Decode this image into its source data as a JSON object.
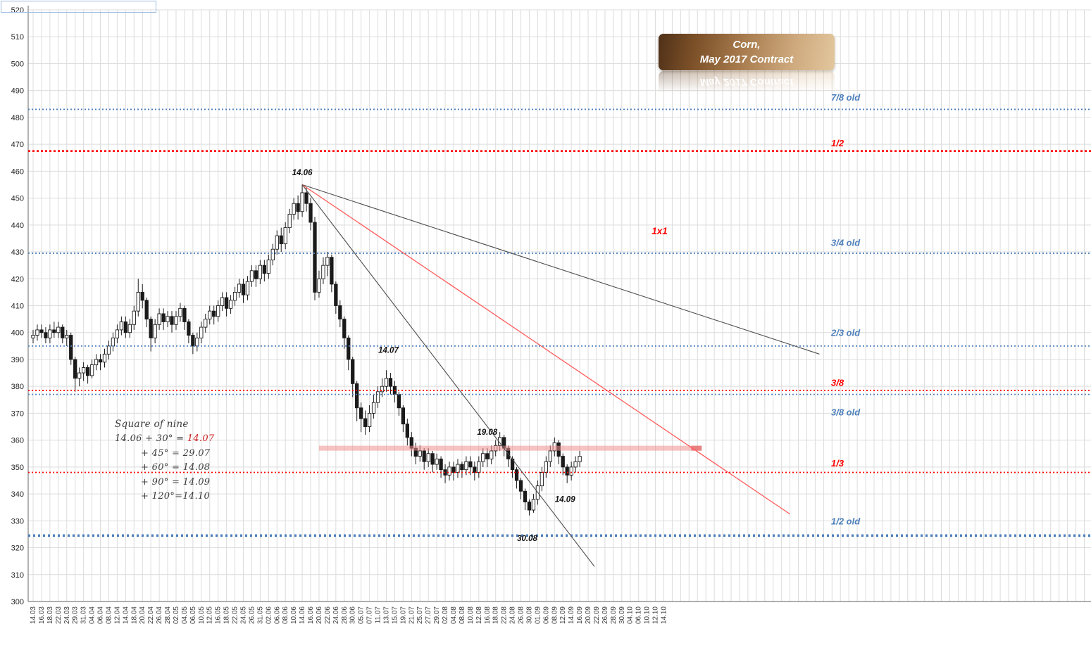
{
  "title_box": {
    "line1": "Corn,",
    "line2": "May 2017 Contract"
  },
  "square_of_nine": {
    "heading": "Square of nine",
    "line1_prefix": "14.06 + 30° = ",
    "line1_highlight": "14.07",
    "lines": [
      "+ 45° = 29.07",
      "+ 60° = 14.08",
      "+ 90° = 14.09",
      "+ 120°=14.10"
    ]
  },
  "colors": {
    "grid": "#dcdcdc",
    "candle": "#1a1a1a",
    "ref_blue": "#4f81bd",
    "ref_red": "#ff0000",
    "gann_black": "#4d4d4d",
    "gann_red": "#ff5a5a",
    "band": "#f08f8f",
    "band_cap": "#e05555"
  },
  "chart_data": {
    "type": "candlestick",
    "title": "Corn, May 2017 Contract",
    "y_axis": {
      "min": 300,
      "max": 520,
      "step": 10
    },
    "x_labels": [
      "14.03",
      "16.03",
      "18.03",
      "22.03",
      "24.03",
      "29.03",
      "31.03",
      "04.04",
      "06.04",
      "08.04",
      "12.04",
      "14.04",
      "18.04",
      "20.04",
      "22.04",
      "26.04",
      "28.04",
      "02.05",
      "04.05",
      "06.05",
      "10.05",
      "12.05",
      "16.05",
      "18.05",
      "22.05",
      "24.05",
      "26.05",
      "31.05",
      "02.06",
      "06.06",
      "08.06",
      "10.06",
      "14.06",
      "16.06",
      "20.06",
      "22.06",
      "24.06",
      "28.06",
      "30.06",
      "05.07",
      "07.07",
      "11.07",
      "13.07",
      "15.07",
      "19.07",
      "21.07",
      "25.07",
      "27.07",
      "29.07",
      "02.08",
      "04.08",
      "08.08",
      "10.08",
      "12.08",
      "16.08",
      "18.08",
      "22.08",
      "24.08",
      "26.08",
      "30.08",
      "01.09",
      "06.09",
      "08.09",
      "12.09",
      "14.09",
      "16.09",
      "20.09",
      "22.09",
      "26.09",
      "28.09",
      "30.09",
      "04.10",
      "06.10",
      "10.10",
      "12.10",
      "14.10"
    ],
    "candle_format": [
      "date",
      "open",
      "high",
      "low",
      "close"
    ],
    "candles": [
      [
        "14.03",
        398,
        401,
        396,
        399
      ],
      [
        "15.03",
        399,
        403,
        397,
        401
      ],
      [
        "16.03",
        401,
        403,
        398,
        400
      ],
      [
        "17.03",
        400,
        402,
        396,
        398
      ],
      [
        "18.03",
        398,
        403,
        396,
        401
      ],
      [
        "21.03",
        401,
        404,
        398,
        400
      ],
      [
        "22.03",
        400,
        404,
        398,
        402
      ],
      [
        "23.03",
        402,
        403,
        396,
        398
      ],
      [
        "24.03",
        398,
        401,
        395,
        399
      ],
      [
        "28.03",
        399,
        400,
        388,
        390
      ],
      [
        "29.03",
        390,
        391,
        378,
        383
      ],
      [
        "30.03",
        383,
        387,
        380,
        385
      ],
      [
        "31.03",
        385,
        389,
        382,
        387
      ],
      [
        "01.04",
        387,
        388,
        381,
        384
      ],
      [
        "04.04",
        384,
        390,
        383,
        388
      ],
      [
        "05.04",
        388,
        392,
        386,
        390
      ],
      [
        "06.04",
        390,
        392,
        386,
        389
      ],
      [
        "07.04",
        389,
        394,
        387,
        392
      ],
      [
        "08.04",
        392,
        397,
        390,
        395
      ],
      [
        "11.04",
        395,
        400,
        393,
        398
      ],
      [
        "12.04",
        398,
        403,
        396,
        401
      ],
      [
        "13.04",
        401,
        406,
        399,
        404
      ],
      [
        "14.04",
        404,
        406,
        398,
        400
      ],
      [
        "15.04",
        400,
        405,
        398,
        403
      ],
      [
        "18.04",
        403,
        410,
        401,
        408
      ],
      [
        "19.04",
        408,
        420,
        406,
        415
      ],
      [
        "20.04",
        415,
        418,
        409,
        412
      ],
      [
        "21.04",
        412,
        413,
        402,
        405
      ],
      [
        "22.04",
        405,
        406,
        393,
        398
      ],
      [
        "25.04",
        398,
        405,
        396,
        403
      ],
      [
        "26.04",
        403,
        409,
        401,
        407
      ],
      [
        "27.04",
        407,
        409,
        401,
        404
      ],
      [
        "28.04",
        404,
        408,
        402,
        406
      ],
      [
        "29.04",
        406,
        408,
        400,
        403
      ],
      [
        "02.05",
        403,
        408,
        401,
        406
      ],
      [
        "03.05",
        406,
        411,
        404,
        409
      ],
      [
        "04.05",
        409,
        410,
        401,
        404
      ],
      [
        "05.05",
        404,
        405,
        396,
        399
      ],
      [
        "06.05",
        399,
        400,
        392,
        395
      ],
      [
        "09.05",
        395,
        400,
        393,
        398
      ],
      [
        "10.05",
        398,
        404,
        396,
        402
      ],
      [
        "11.05",
        402,
        407,
        400,
        405
      ],
      [
        "12.05",
        405,
        410,
        403,
        408
      ],
      [
        "13.05",
        408,
        410,
        403,
        406
      ],
      [
        "16.05",
        406,
        412,
        404,
        410
      ],
      [
        "17.05",
        410,
        415,
        408,
        413
      ],
      [
        "18.05",
        413,
        415,
        406,
        409
      ],
      [
        "19.05",
        409,
        414,
        407,
        412
      ],
      [
        "22.05",
        412,
        417,
        410,
        415
      ],
      [
        "23.05",
        415,
        420,
        413,
        418
      ],
      [
        "24.05",
        418,
        420,
        411,
        414
      ],
      [
        "25.05",
        414,
        421,
        412,
        419
      ],
      [
        "26.05",
        419,
        425,
        417,
        423
      ],
      [
        "27.05",
        423,
        425,
        417,
        420
      ],
      [
        "31.05",
        420,
        427,
        418,
        425
      ],
      [
        "01.06",
        425,
        427,
        419,
        422
      ],
      [
        "02.06",
        422,
        429,
        420,
        427
      ],
      [
        "03.06",
        427,
        433,
        425,
        431
      ],
      [
        "06.06",
        431,
        438,
        429,
        436
      ],
      [
        "07.06",
        436,
        439,
        430,
        433
      ],
      [
        "08.06",
        433,
        441,
        431,
        439
      ],
      [
        "09.06",
        439,
        446,
        437,
        444
      ],
      [
        "10.06",
        444,
        450,
        442,
        448
      ],
      [
        "13.06",
        448,
        451,
        442,
        445
      ],
      [
        "14.06",
        445,
        455,
        443,
        452
      ],
      [
        "15.06",
        452,
        454,
        445,
        448
      ],
      [
        "16.06",
        448,
        450,
        438,
        441
      ],
      [
        "17.06",
        441,
        443,
        412,
        415
      ],
      [
        "20.06",
        415,
        423,
        413,
        420
      ],
      [
        "21.06",
        420,
        428,
        418,
        425
      ],
      [
        "22.06",
        425,
        430,
        421,
        428
      ],
      [
        "23.06",
        428,
        429,
        415,
        418
      ],
      [
        "24.06",
        418,
        419,
        407,
        410
      ],
      [
        "27.06",
        410,
        412,
        402,
        405
      ],
      [
        "28.06",
        405,
        406,
        394,
        398
      ],
      [
        "29.06",
        398,
        399,
        386,
        390
      ],
      [
        "30.06",
        390,
        391,
        376,
        381
      ],
      [
        "01.07",
        381,
        382,
        367,
        372
      ],
      [
        "05.07",
        372,
        374,
        363,
        368
      ],
      [
        "06.07",
        368,
        371,
        362,
        365
      ],
      [
        "07.07",
        365,
        373,
        363,
        370
      ],
      [
        "08.07",
        370,
        377,
        368,
        374
      ],
      [
        "11.07",
        374,
        380,
        372,
        378
      ],
      [
        "12.07",
        378,
        383,
        376,
        380
      ],
      [
        "13.07",
        380,
        386,
        378,
        383
      ],
      [
        "14.07",
        383,
        385,
        377,
        380
      ],
      [
        "15.07",
        380,
        382,
        374,
        377
      ],
      [
        "18.07",
        377,
        378,
        369,
        372
      ],
      [
        "19.07",
        372,
        373,
        363,
        366
      ],
      [
        "20.07",
        366,
        368,
        358,
        361
      ],
      [
        "21.07",
        361,
        363,
        354,
        357
      ],
      [
        "22.07",
        357,
        359,
        351,
        354
      ],
      [
        "25.07",
        354,
        358,
        352,
        356
      ],
      [
        "26.07",
        356,
        357,
        349,
        352
      ],
      [
        "27.07",
        352,
        357,
        350,
        355
      ],
      [
        "28.07",
        355,
        356,
        348,
        351
      ],
      [
        "29.07",
        351,
        355,
        349,
        353
      ],
      [
        "01.08",
        353,
        354,
        346,
        349
      ],
      [
        "02.08",
        349,
        351,
        344,
        347
      ],
      [
        "03.08",
        347,
        352,
        345,
        350
      ],
      [
        "04.08",
        350,
        352,
        345,
        348
      ],
      [
        "05.08",
        348,
        353,
        346,
        351
      ],
      [
        "08.08",
        351,
        352,
        346,
        349
      ],
      [
        "09.08",
        349,
        354,
        347,
        352
      ],
      [
        "10.08",
        352,
        354,
        347,
        350
      ],
      [
        "11.08",
        350,
        352,
        345,
        348
      ],
      [
        "12.08",
        348,
        354,
        346,
        352
      ],
      [
        "15.08",
        352,
        357,
        350,
        355
      ],
      [
        "16.08",
        355,
        357,
        350,
        353
      ],
      [
        "17.08",
        353,
        358,
        351,
        356
      ],
      [
        "18.08",
        356,
        360,
        354,
        358
      ],
      [
        "19.08",
        358,
        363,
        356,
        361
      ],
      [
        "22.08",
        361,
        362,
        354,
        357
      ],
      [
        "23.08",
        357,
        358,
        350,
        353
      ],
      [
        "24.08",
        353,
        354,
        346,
        349
      ],
      [
        "25.08",
        349,
        350,
        342,
        345
      ],
      [
        "26.08",
        345,
        346,
        338,
        341
      ],
      [
        "29.08",
        341,
        342,
        334,
        337
      ],
      [
        "30.08",
        337,
        338,
        332,
        334
      ],
      [
        "31.08",
        334,
        340,
        333,
        338
      ],
      [
        "01.09",
        338,
        345,
        336,
        343
      ],
      [
        "02.09",
        343,
        350,
        341,
        348
      ],
      [
        "06.09",
        348,
        354,
        346,
        352
      ],
      [
        "07.09",
        352,
        358,
        350,
        356
      ],
      [
        "08.09",
        356,
        361,
        354,
        359
      ],
      [
        "09.09",
        359,
        360,
        351,
        354
      ],
      [
        "12.09",
        354,
        355,
        347,
        350
      ],
      [
        "13.09",
        350,
        351,
        344,
        347
      ],
      [
        "14.09",
        347,
        352,
        345,
        350
      ],
      [
        "15.09",
        350,
        354,
        348,
        352
      ],
      [
        "16.09",
        352,
        356,
        350,
        354
      ]
    ],
    "reference_lines": [
      {
        "label": "7/8 old",
        "price": 483,
        "label_price": 487.5,
        "color": "blue",
        "weight": 1.8
      },
      {
        "label": "1/2",
        "price": 467.5,
        "label_price": 470.5,
        "color": "red",
        "weight": 2.6
      },
      {
        "label": "3/4 old",
        "price": 429.5,
        "label_price": 433.5,
        "color": "blue",
        "weight": 1.8
      },
      {
        "label": "2/3 old",
        "price": 395,
        "label_price": 400,
        "color": "blue",
        "weight": 1.8
      },
      {
        "label": "3/8",
        "price": 378.5,
        "label_price": 381.5,
        "color": "red",
        "weight": 1.8
      },
      {
        "label": "3/8 old",
        "price": 377,
        "label_price": 370.5,
        "color": "blue",
        "weight": 1.8
      },
      {
        "label": "1/3",
        "price": 348,
        "label_price": 351.5,
        "color": "red",
        "weight": 1.8
      },
      {
        "label": "1/2 old",
        "price": 324.5,
        "label_price": 330,
        "color": "blue",
        "weight": 3.6
      }
    ],
    "gann_lines": [
      {
        "name": "upper-black",
        "color": "black",
        "from": {
          "slot": 64,
          "price": 455
        },
        "to": {
          "slot": 187,
          "price": 392
        }
      },
      {
        "name": "1x1-red",
        "color": "red",
        "from": {
          "slot": 64,
          "price": 455
        },
        "to": {
          "slot": 180,
          "price": 332.5
        }
      },
      {
        "name": "lower-black",
        "color": "black",
        "from": {
          "slot": 64,
          "price": 455
        },
        "to": {
          "slot": 133.5,
          "price": 313
        }
      }
    ],
    "annotations": [
      {
        "text": "14.06",
        "slot": 64,
        "price": 458.5
      },
      {
        "text": "14.07",
        "slot": 84.5,
        "price": 392.5
      },
      {
        "text": "19.08",
        "slot": 108,
        "price": 362
      },
      {
        "text": "30.08",
        "slot": 117.5,
        "price": 322.5
      },
      {
        "text": "14.09",
        "slot": 126.5,
        "price": 337
      },
      {
        "text": "1x1",
        "slot": 149,
        "price": 436.5,
        "color": "red"
      }
    ],
    "highlight_band": {
      "price": 357,
      "from_slot": 68,
      "to_slot": 159
    }
  }
}
